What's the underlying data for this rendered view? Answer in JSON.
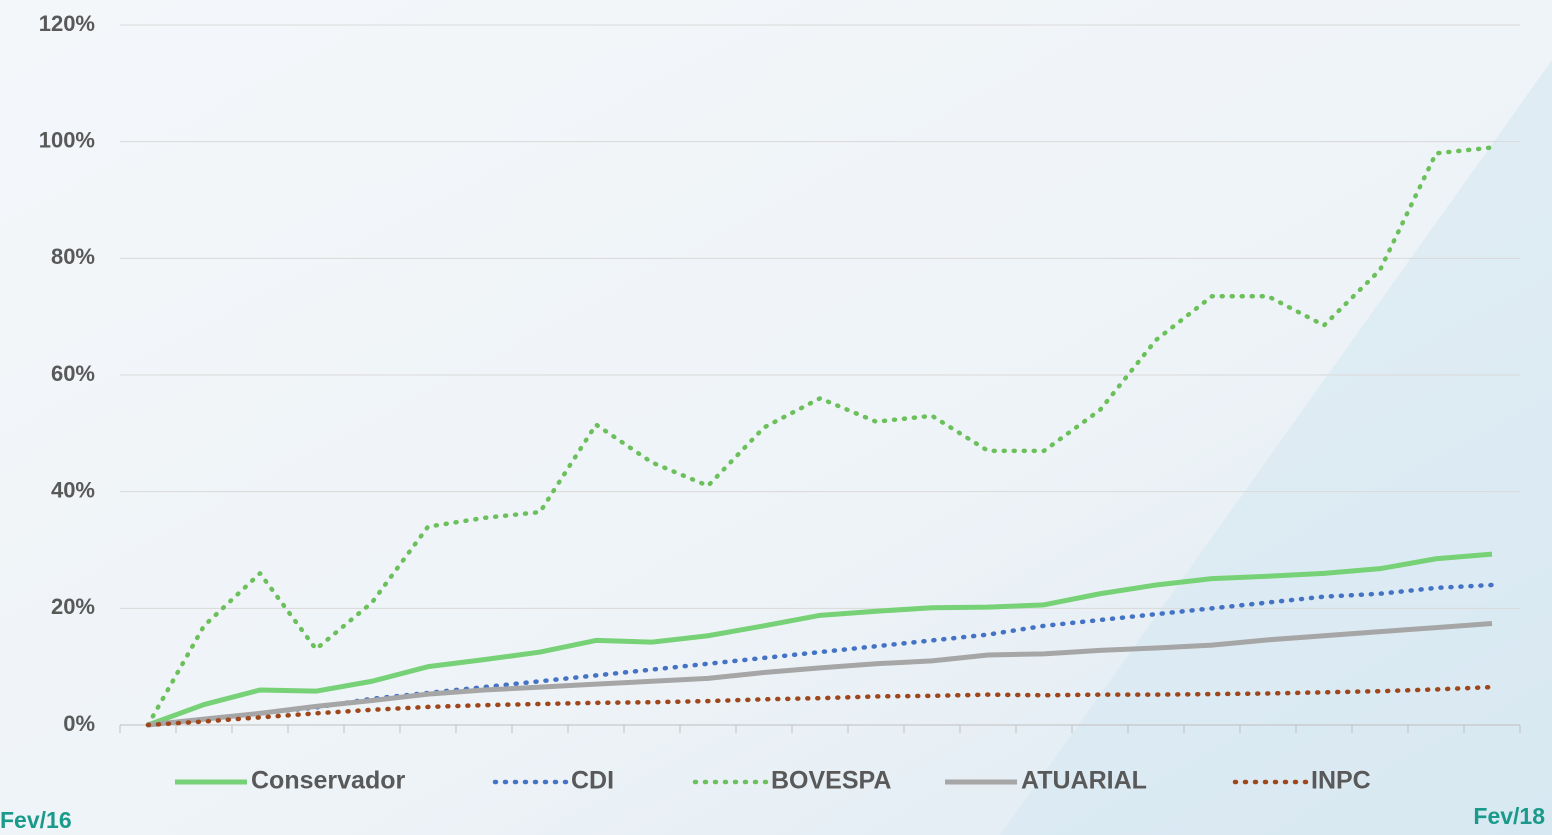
{
  "chart_data": {
    "type": "line",
    "categories": [
      "Fev/16",
      null,
      null,
      null,
      null,
      null,
      null,
      null,
      null,
      null,
      null,
      null,
      null,
      null,
      null,
      null,
      null,
      null,
      null,
      null,
      null,
      null,
      null,
      null,
      "Fev/18"
    ],
    "series": [
      {
        "name": "Conservador",
        "color": "#77d177",
        "style": "solid",
        "values": [
          0,
          3.5,
          6,
          5.8,
          7.5,
          10,
          11.2,
          12.5,
          14.5,
          14.2,
          15.3,
          17,
          18.8,
          19.5,
          20.1,
          20.2,
          20.6,
          22.5,
          24,
          25.1,
          25.5,
          26,
          26.8,
          28.5,
          29.3
        ]
      },
      {
        "name": "CDI",
        "color": "#4472c4",
        "style": "dotted",
        "values": [
          0,
          1,
          2,
          3,
          4.5,
          5.5,
          6.5,
          7.5,
          8.5,
          9.5,
          10.5,
          11.5,
          12.5,
          13.5,
          14.5,
          15.5,
          17,
          18,
          19,
          20,
          21,
          22,
          22.5,
          23.5,
          24
        ]
      },
      {
        "name": "BOVESPA",
        "color": "#6cc05c",
        "style": "dotted",
        "values": [
          0,
          17,
          26,
          13,
          21,
          34,
          35.5,
          36.5,
          51.5,
          45,
          41,
          51,
          56,
          52,
          53,
          47,
          47,
          54,
          66,
          73.5,
          73.5,
          68.5,
          78,
          98,
          99
        ]
      },
      {
        "name": "ATUARIAL",
        "color": "#a6a6a6",
        "style": "solid",
        "values": [
          0,
          1,
          2,
          3.2,
          4.2,
          5.3,
          6,
          6.5,
          7,
          7.5,
          8,
          9,
          9.8,
          10.5,
          11,
          12,
          12.2,
          12.8,
          13.2,
          13.7,
          14.6,
          15.3,
          16,
          16.7,
          17.4
        ]
      },
      {
        "name": "INPC",
        "color": "#a0461b",
        "style": "dotted",
        "values": [
          0,
          0.6,
          1.3,
          2,
          2.6,
          3.1,
          3.4,
          3.6,
          3.8,
          3.9,
          4.1,
          4.4,
          4.6,
          4.9,
          5,
          5.2,
          5.1,
          5.2,
          5.2,
          5.3,
          5.4,
          5.6,
          5.8,
          6.1,
          6.5
        ]
      }
    ],
    "ylim": [
      0,
      120
    ],
    "yticks": [
      {
        "value": 0,
        "label": "0%"
      },
      {
        "value": 20,
        "label": "20%"
      },
      {
        "value": 40,
        "label": "40%"
      },
      {
        "value": 60,
        "label": "60%"
      },
      {
        "value": 80,
        "label": "80%"
      },
      {
        "value": 100,
        "label": "100%"
      },
      {
        "value": 120,
        "label": "120%"
      }
    ],
    "grid": true,
    "legend": "bottom"
  }
}
